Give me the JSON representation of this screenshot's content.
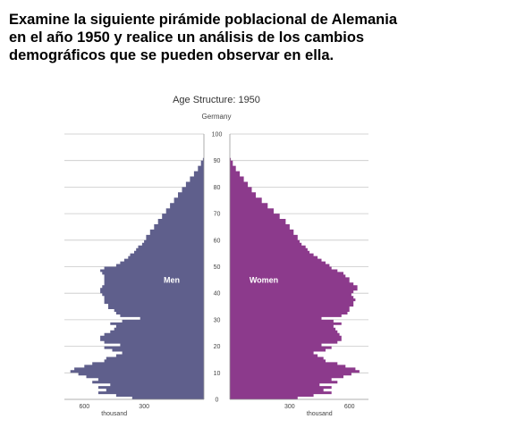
{
  "question": {
    "lines": [
      "Examine la siguiente pirámide poblacional de Alemania",
      "en el año 1950 y realice un análisis de los cambios",
      "demográficos que se pueden observar en ella."
    ]
  },
  "chart_data": {
    "type": "bar",
    "orientation": "horizontal-pyramid",
    "title": "Age Structure: 1950",
    "subtitle": "Germany",
    "y_ticks": [
      "0",
      "10",
      "20",
      "30",
      "40",
      "50",
      "60",
      "70",
      "80",
      "90",
      "100"
    ],
    "x_ticks_left": [
      "600",
      "300"
    ],
    "x_ticks_right": [
      "300",
      "600"
    ],
    "x_unit_left": "thousand",
    "x_unit_right": "thousand",
    "ylim": [
      0,
      100
    ],
    "xlim": [
      0,
      700
    ],
    "grid": true,
    "series": [
      {
        "name": "Men",
        "color": "#5f5f8c",
        "ages": [
          0,
          1,
          2,
          3,
          4,
          5,
          6,
          7,
          8,
          9,
          10,
          11,
          12,
          13,
          14,
          15,
          16,
          17,
          18,
          19,
          20,
          21,
          22,
          23,
          24,
          25,
          26,
          27,
          28,
          29,
          30,
          31,
          32,
          33,
          34,
          35,
          36,
          37,
          38,
          39,
          40,
          41,
          42,
          43,
          44,
          45,
          46,
          47,
          48,
          49,
          50,
          51,
          52,
          53,
          54,
          55,
          56,
          57,
          58,
          59,
          60,
          62,
          64,
          66,
          68,
          70,
          72,
          74,
          76,
          78,
          80,
          82,
          84,
          86,
          88,
          90
        ],
        "values": [
          360,
          440,
          530,
          490,
          530,
          470,
          560,
          530,
          590,
          630,
          670,
          650,
          600,
          560,
          500,
          490,
          440,
          410,
          460,
          500,
          420,
          500,
          520,
          520,
          500,
          470,
          450,
          440,
          470,
          410,
          320,
          420,
          440,
          450,
          480,
          480,
          500,
          500,
          500,
          510,
          520,
          520,
          510,
          500,
          500,
          500,
          500,
          510,
          520,
          500,
          440,
          420,
          400,
          380,
          370,
          350,
          340,
          330,
          310,
          300,
          290,
          270,
          250,
          230,
          210,
          190,
          170,
          150,
          130,
          110,
          90,
          70,
          50,
          30,
          15,
          5
        ]
      },
      {
        "name": "Women",
        "color": "#8c3a8c",
        "ages": [
          0,
          1,
          2,
          3,
          4,
          5,
          6,
          7,
          8,
          9,
          10,
          11,
          12,
          13,
          14,
          15,
          16,
          17,
          18,
          19,
          20,
          21,
          22,
          23,
          24,
          25,
          26,
          27,
          28,
          29,
          30,
          31,
          32,
          33,
          34,
          35,
          36,
          37,
          38,
          39,
          40,
          41,
          42,
          43,
          44,
          45,
          46,
          47,
          48,
          49,
          50,
          51,
          52,
          53,
          54,
          55,
          56,
          57,
          58,
          59,
          60,
          62,
          64,
          66,
          68,
          70,
          72,
          74,
          76,
          78,
          80,
          82,
          84,
          86,
          88,
          90
        ],
        "values": [
          340,
          420,
          510,
          470,
          510,
          450,
          540,
          510,
          570,
          610,
          650,
          630,
          580,
          540,
          480,
          470,
          440,
          420,
          480,
          510,
          460,
          540,
          560,
          560,
          550,
          540,
          530,
          520,
          560,
          520,
          460,
          560,
          590,
          600,
          600,
          620,
          620,
          630,
          620,
          610,
          620,
          640,
          640,
          620,
          600,
          600,
          580,
          570,
          540,
          510,
          500,
          480,
          460,
          440,
          420,
          400,
          390,
          380,
          360,
          350,
          340,
          320,
          300,
          280,
          250,
          220,
          190,
          160,
          130,
          110,
          90,
          70,
          50,
          30,
          15,
          5
        ]
      }
    ]
  }
}
